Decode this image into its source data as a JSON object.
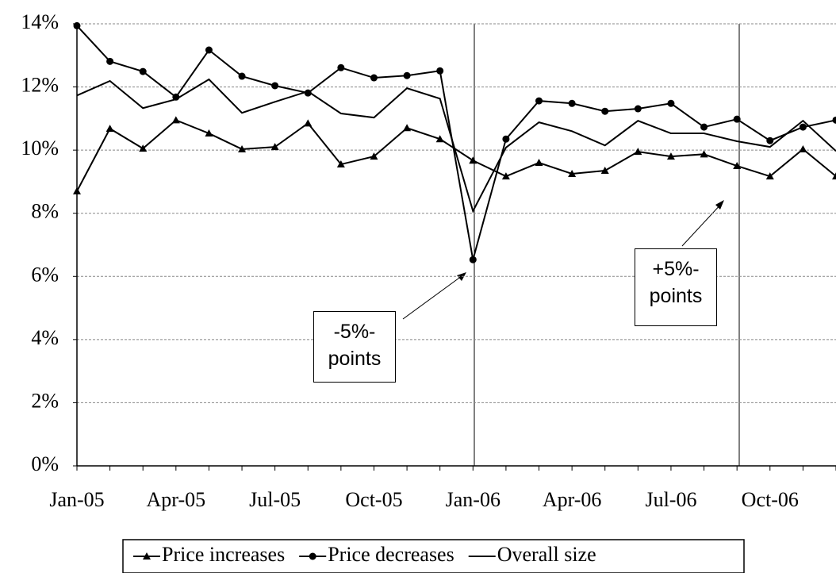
{
  "chart_data": {
    "type": "line",
    "categories": [
      "Jan-05",
      null,
      null,
      "Apr-05",
      null,
      null,
      "Jul-05",
      null,
      null,
      "Oct-05",
      null,
      null,
      "Jan-06",
      null,
      null,
      "Apr-06",
      null,
      null,
      "Jul-06",
      null,
      null,
      "Oct-06",
      null,
      null
    ],
    "series": [
      {
        "name": "Price increases",
        "color": "#000000",
        "marker": "triangle",
        "values": [
          8.7,
          10.68,
          10.05,
          10.95,
          10.53,
          10.03,
          10.1,
          10.85,
          9.55,
          9.8,
          10.7,
          10.35,
          9.67,
          9.17,
          9.6,
          9.25,
          9.35,
          9.95,
          9.8,
          9.87,
          9.5,
          9.17,
          10.03,
          9.17
        ]
      },
      {
        "name": "Price decreases",
        "color": "#000000",
        "marker": "circle",
        "values": [
          13.94,
          12.81,
          12.49,
          11.68,
          13.17,
          12.34,
          12.04,
          11.81,
          12.61,
          12.29,
          12.36,
          12.51,
          6.53,
          10.35,
          11.56,
          11.48,
          11.23,
          11.31,
          11.48,
          10.73,
          10.98,
          10.3,
          10.73,
          10.95
        ]
      },
      {
        "name": "Overall size",
        "color": "#000000",
        "marker": "none",
        "values": [
          11.73,
          12.19,
          11.33,
          11.61,
          12.24,
          11.18,
          11.53,
          11.86,
          11.16,
          11.03,
          11.96,
          11.63,
          8.07,
          10.08,
          10.88,
          10.6,
          10.15,
          10.93,
          10.53,
          10.53,
          10.28,
          10.1,
          10.93,
          9.97
        ]
      }
    ],
    "ylim": [
      0,
      14
    ],
    "yticks": [
      {
        "value": 0,
        "label": "0%"
      },
      {
        "value": 2,
        "label": "2%"
      },
      {
        "value": 4,
        "label": "4%"
      },
      {
        "value": 6,
        "label": "6%"
      },
      {
        "value": 8,
        "label": "8%"
      },
      {
        "value": 10,
        "label": "10%"
      },
      {
        "value": 12,
        "label": "12%"
      },
      {
        "value": 14,
        "label": "14%"
      }
    ],
    "grid": true,
    "legend": "bottom",
    "annotations": [
      "-5%-points",
      "+5%-points"
    ]
  }
}
